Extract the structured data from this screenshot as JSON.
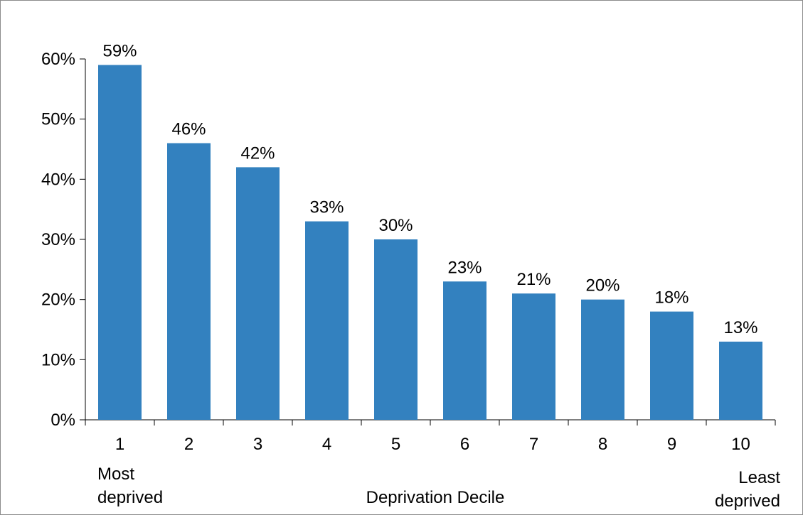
{
  "chart_data": {
    "type": "bar",
    "categories": [
      "1",
      "2",
      "3",
      "4",
      "5",
      "6",
      "7",
      "8",
      "9",
      "10"
    ],
    "values": [
      59,
      46,
      42,
      33,
      30,
      23,
      21,
      20,
      18,
      13
    ],
    "data_labels": [
      "59%",
      "46%",
      "42%",
      "33%",
      "30%",
      "23%",
      "21%",
      "20%",
      "18%",
      "13%"
    ],
    "xlabel": "Deprivation Decile",
    "ylabel": "",
    "ylim": [
      0,
      60
    ],
    "yticks": [
      0,
      10,
      20,
      30,
      40,
      50,
      60
    ],
    "ytick_labels": [
      "0%",
      "10%",
      "20%",
      "30%",
      "40%",
      "50%",
      "60%"
    ],
    "grid": false,
    "legend": "none",
    "bar_color": "#3381BF",
    "annotations": {
      "left": [
        "Most",
        "deprived"
      ],
      "right": [
        "Least",
        "deprived"
      ]
    }
  }
}
